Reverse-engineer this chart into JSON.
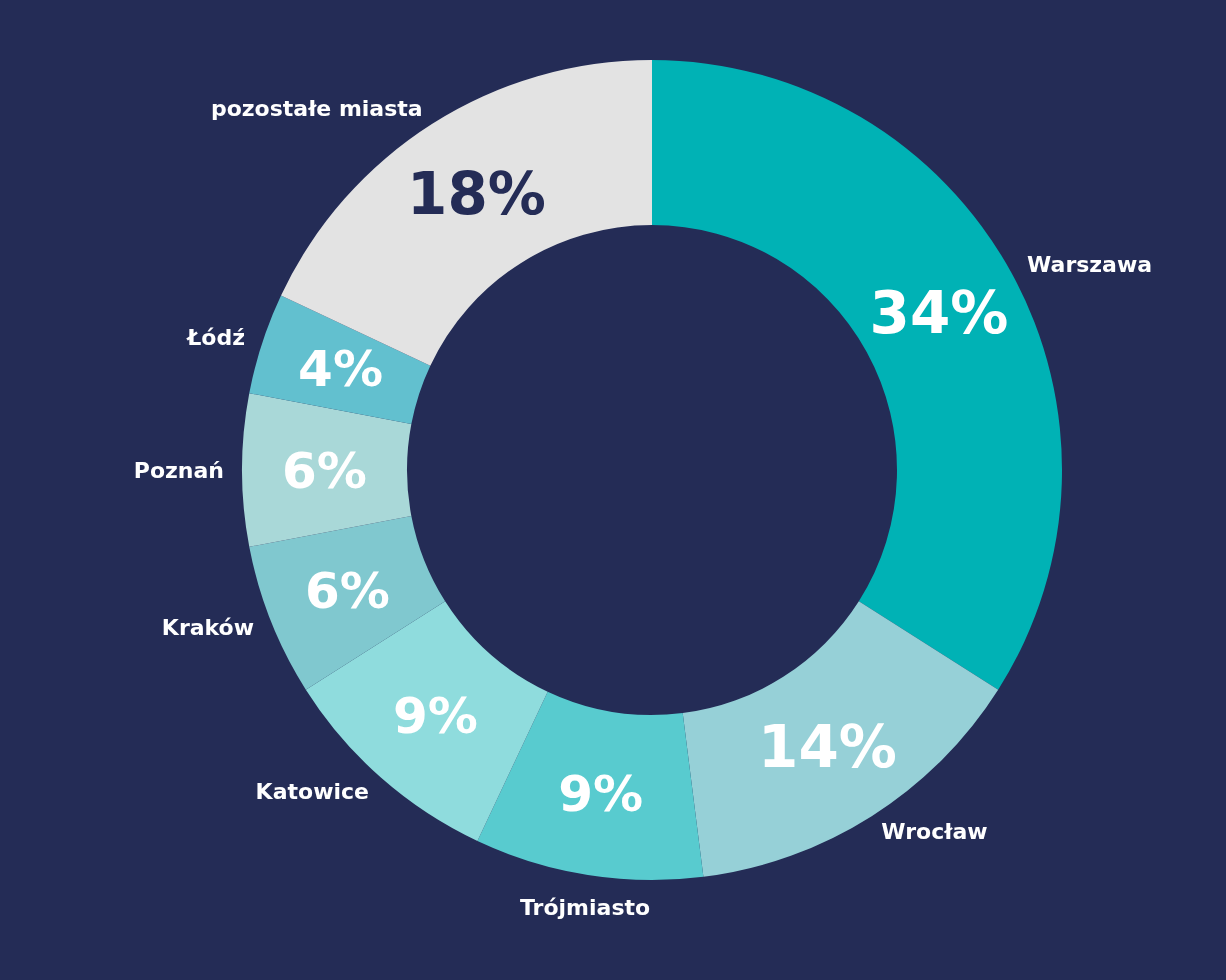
{
  "chart_data": {
    "type": "donut",
    "categories": [
      "Warszawa",
      "Wrocław",
      "Trójmiasto",
      "Katowice",
      "Kraków",
      "Poznań",
      "Łódź",
      "pozostałe miasta"
    ],
    "values": [
      34,
      14,
      9,
      9,
      6,
      6,
      4,
      18
    ],
    "value_labels": [
      "34%",
      "14%",
      "9%",
      "9%",
      "6%",
      "6%",
      "4%",
      "18%"
    ],
    "colors": [
      "#00b2b5",
      "#96d0d7",
      "#58cbcf",
      "#8fdcdd",
      "#80c8cf",
      "#a9d8d8",
      "#62c0cf",
      "#e3e3e3"
    ]
  }
}
